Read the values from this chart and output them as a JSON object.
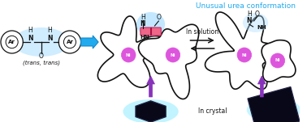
{
  "title": "Unusual urea conformation",
  "title_color": "#22AAEE",
  "bg_color": "#FFFFFF",
  "label_trans_trans": "(trans, trans)",
  "label_in_solution": "In solution",
  "label_in_crystal": "In crystal",
  "porphyrin_color": "#DD55DD",
  "blue_glow": "#AADDFF",
  "arrow_purple": "#8833BB",
  "arrow_blue_fill": "#22AAEE",
  "arrow_blue_stroke": "#1188CC",
  "line_color": "#111111",
  "crystal_dark": "#080818",
  "crystal_glow": "#99EEFF"
}
